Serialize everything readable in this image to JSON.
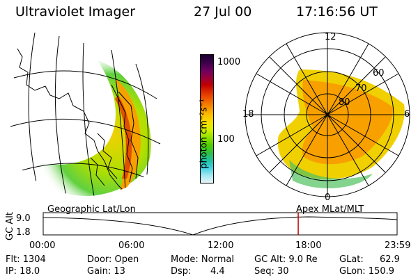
{
  "header": {
    "instrument": "Ultraviolet Imager",
    "date": "27 Jul 00",
    "time": "17:16:56 UT"
  },
  "colorbar": {
    "unit_label": "photon cm⁻²s⁻¹",
    "ticks": [
      "1000",
      "100"
    ],
    "colors": [
      "#1a0030",
      "#3a0048",
      "#6a0060",
      "#960040",
      "#c00000",
      "#e03000",
      "#f06000",
      "#f89000",
      "#fcc000",
      "#f8e000",
      "#d0f000",
      "#90e000",
      "#50d000",
      "#30c040",
      "#20c0a0",
      "#40d0e0",
      "#a0e8f0",
      "#e8f4f8"
    ]
  },
  "geo_panel": {
    "label": "Geographic Lat/Lon"
  },
  "polar_panel": {
    "label": "Apex MLat/MLT",
    "mlt_labels": {
      "top": "12",
      "left": "18",
      "right": "6",
      "bottom": "0"
    },
    "lat_labels": [
      "60",
      "70",
      "80"
    ]
  },
  "altitude_plot": {
    "ylabel": "GC Alt",
    "yticks": [
      "9.0",
      "1.8"
    ],
    "xticks": [
      "00:00",
      "06:00",
      "12:00",
      "18:00",
      "23:59"
    ],
    "current_time_marker": "17:16:56",
    "marker_color": "#c00000"
  },
  "status": {
    "flt": "Flt: 1304",
    "ip": "IP: 18.0",
    "door": "Door: Open",
    "gain": "Gain: 13",
    "mode": "Mode: Normal",
    "dsp_label": "Dsp:",
    "dsp_value": "4.4",
    "gcalt": "GC Alt: 9.0 Re",
    "seq": "Seq: 30",
    "glat_label": "GLat:",
    "glat_value": "62.9",
    "glon": "GLon: 150.9"
  }
}
